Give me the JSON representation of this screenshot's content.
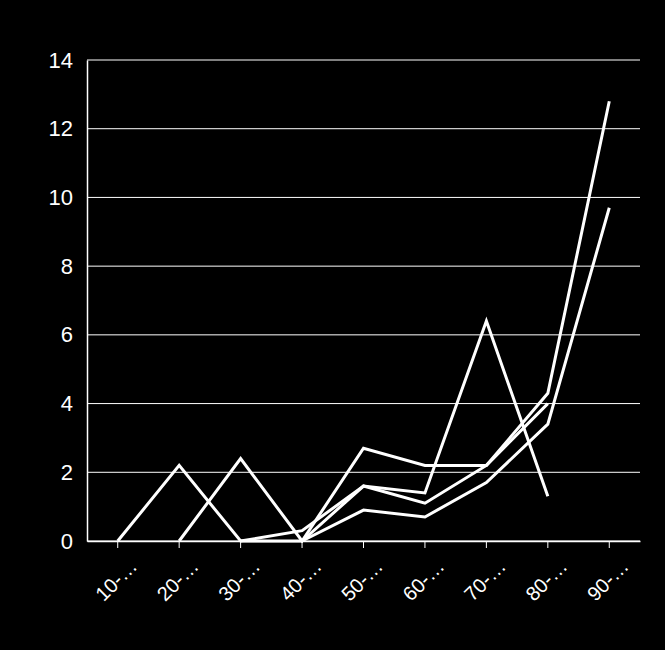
{
  "chart_data": {
    "type": "line",
    "categories": [
      "10-…",
      "20-…",
      "30-…",
      "40-…",
      "50-…",
      "60-…",
      "70-…",
      "80-…",
      "90-…"
    ],
    "series": [
      {
        "color": "#ffffff",
        "values": [
          0,
          2.2,
          0,
          0.3,
          1.6,
          1.4,
          6.4,
          1.3,
          null
        ]
      },
      {
        "color": "#ffffff",
        "values": [
          null,
          0,
          2.4,
          0,
          2.7,
          2.2,
          2.2,
          4.0,
          null
        ]
      },
      {
        "color": "#ffffff",
        "values": [
          null,
          null,
          0,
          0,
          1.6,
          1.1,
          2.2,
          4.3,
          12.8
        ]
      },
      {
        "color": "#ffffff",
        "values": [
          null,
          null,
          null,
          0,
          0.9,
          0.7,
          1.7,
          3.4,
          9.7
        ]
      }
    ],
    "ylim": [
      0,
      14
    ],
    "yticks": [
      0,
      2,
      4,
      6,
      8,
      10,
      12,
      14
    ],
    "grid": true
  }
}
